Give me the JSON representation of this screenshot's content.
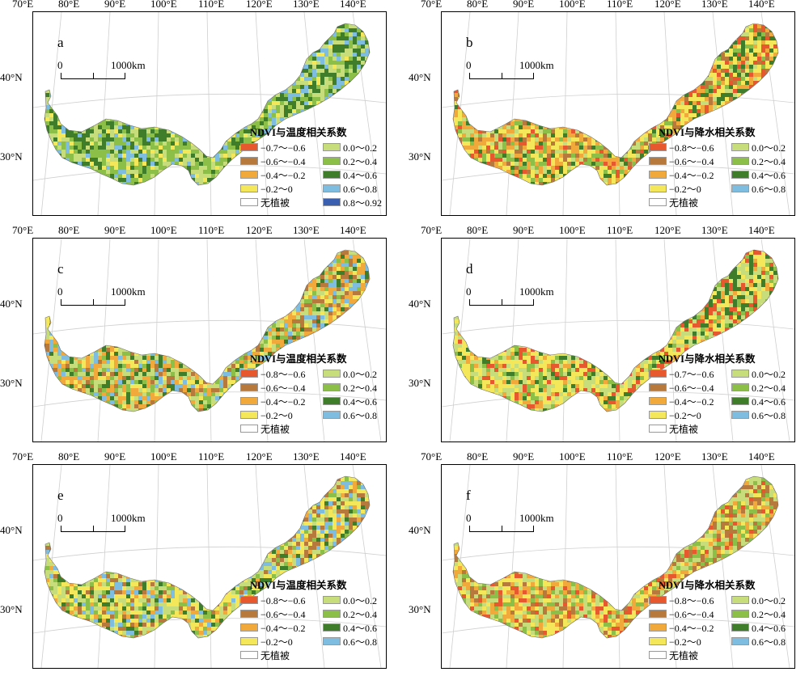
{
  "x_ticks": [
    "70°E",
    "80°E",
    "90°E",
    "100°E",
    "110°E",
    "120°E",
    "130°E",
    "140°E"
  ],
  "y_ticks": [
    "40°N",
    "30°N"
  ],
  "scale_bar": {
    "zero": "0",
    "label": "1000km"
  },
  "colors": {
    "neg08": "#e8582f",
    "neg06": "#b87a3c",
    "neg04": "#f2a93b",
    "neg02": "#f4e85a",
    "pos00": "#c7dc7a",
    "pos02": "#8cbf47",
    "pos04": "#3f7d2b",
    "pos06": "#7fbde0",
    "pos08": "#3b5fb0",
    "none": "#ffffff"
  },
  "panels": [
    {
      "letter": "a",
      "legend_title": "NDVI与温度相关系数",
      "legend_left": [
        {
          "label": "−0.7～−0.6",
          "color": "#e8582f"
        },
        {
          "label": "−0.6～−0.4",
          "color": "#b87a3c"
        },
        {
          "label": "−0.4～−0.2",
          "color": "#f2a93b"
        },
        {
          "label": "−0.2～0",
          "color": "#f4e85a"
        },
        {
          "label": "无植被",
          "color": "#ffffff"
        }
      ],
      "legend_right": [
        {
          "label": "0.0～0.2",
          "color": "#c7dc7a"
        },
        {
          "label": "0.2～0.4",
          "color": "#8cbf47"
        },
        {
          "label": "0.4～0.6",
          "color": "#3f7d2b"
        },
        {
          "label": "0.6～0.8",
          "color": "#7fbde0"
        },
        {
          "label": "0.8～0.92",
          "color": "#3b5fb0"
        }
      ],
      "palette": [
        "#8cbf47",
        "#8cbf47",
        "#c7dc7a",
        "#3f7d2b",
        "#f4e85a",
        "#8cbf47",
        "#c7dc7a",
        "#3f7d2b",
        "#7fbde0"
      ]
    },
    {
      "letter": "b",
      "legend_title": "NDVI与降水相关系数",
      "legend_left": [
        {
          "label": "−0.8～−0.6",
          "color": "#e8582f"
        },
        {
          "label": "−0.6～−0.4",
          "color": "#b87a3c"
        },
        {
          "label": "−0.4～−0.2",
          "color": "#f2a93b"
        },
        {
          "label": "−0.2～0",
          "color": "#f4e85a"
        },
        {
          "label": "无植被",
          "color": "#ffffff"
        }
      ],
      "legend_right": [
        {
          "label": "0.0～0.2",
          "color": "#c7dc7a"
        },
        {
          "label": "0.2～0.4",
          "color": "#8cbf47"
        },
        {
          "label": "0.4～0.6",
          "color": "#3f7d2b"
        },
        {
          "label": "0.6～0.8",
          "color": "#7fbde0"
        }
      ],
      "palette": [
        "#f2a93b",
        "#f4e85a",
        "#c7dc7a",
        "#f2a93b",
        "#b87a3c",
        "#8cbf47",
        "#f4e85a",
        "#e8582f",
        "#3f7d2b"
      ]
    },
    {
      "letter": "c",
      "legend_title": "NDVI与温度相关系数",
      "legend_left": [
        {
          "label": "−0.8～−0.6",
          "color": "#e8582f"
        },
        {
          "label": "−0.6～−0.4",
          "color": "#b87a3c"
        },
        {
          "label": "−0.4～−0.2",
          "color": "#f2a93b"
        },
        {
          "label": "−0.2～0",
          "color": "#f4e85a"
        },
        {
          "label": "无植被",
          "color": "#ffffff"
        }
      ],
      "legend_right": [
        {
          "label": "0.0～0.2",
          "color": "#c7dc7a"
        },
        {
          "label": "0.2～0.4",
          "color": "#8cbf47"
        },
        {
          "label": "0.4～0.6",
          "color": "#3f7d2b"
        },
        {
          "label": "0.6～0.8",
          "color": "#7fbde0"
        }
      ],
      "palette": [
        "#c7dc7a",
        "#f4e85a",
        "#8cbf47",
        "#f2a93b",
        "#c7dc7a",
        "#3f7d2b",
        "#f2a93b",
        "#b87a3c",
        "#7fbde0"
      ]
    },
    {
      "letter": "d",
      "legend_title": "NDVI与降水相关系数",
      "legend_left": [
        {
          "label": "−0.7～−0.6",
          "color": "#e8582f"
        },
        {
          "label": "−0.6～−0.4",
          "color": "#b87a3c"
        },
        {
          "label": "−0.4～−0.2",
          "color": "#f2a93b"
        },
        {
          "label": "−0.2～0",
          "color": "#f4e85a"
        },
        {
          "label": "无植被",
          "color": "#ffffff"
        }
      ],
      "legend_right": [
        {
          "label": "0.0～0.2",
          "color": "#c7dc7a"
        },
        {
          "label": "0.2～0.4",
          "color": "#8cbf47"
        },
        {
          "label": "0.4～0.6",
          "color": "#3f7d2b"
        },
        {
          "label": "0.6～0.8",
          "color": "#7fbde0"
        }
      ],
      "palette": [
        "#f4e85a",
        "#f4e85a",
        "#c7dc7a",
        "#f2a93b",
        "#f4e85a",
        "#8cbf47",
        "#c7dc7a",
        "#3f7d2b",
        "#e8582f"
      ]
    },
    {
      "letter": "e",
      "legend_title": "NDVI与温度相关系数",
      "legend_left": [
        {
          "label": "−0.8～−0.6",
          "color": "#e8582f"
        },
        {
          "label": "−0.6～−0.4",
          "color": "#b87a3c"
        },
        {
          "label": "−0.4～−0.2",
          "color": "#f2a93b"
        },
        {
          "label": "−0.2～0",
          "color": "#f4e85a"
        },
        {
          "label": "无植被",
          "color": "#ffffff"
        }
      ],
      "legend_right": [
        {
          "label": "0.0～0.2",
          "color": "#c7dc7a"
        },
        {
          "label": "0.2～0.4",
          "color": "#8cbf47"
        },
        {
          "label": "0.4～0.6",
          "color": "#3f7d2b"
        },
        {
          "label": "0.6～0.8",
          "color": "#7fbde0"
        }
      ],
      "palette": [
        "#c7dc7a",
        "#f4e85a",
        "#8cbf47",
        "#f2a93b",
        "#c7dc7a",
        "#3f7d2b",
        "#f4e85a",
        "#7fbde0",
        "#b87a3c"
      ]
    },
    {
      "letter": "f",
      "legend_title": "NDVI与降水相关系数",
      "legend_left": [
        {
          "label": "−0.8～−0.6",
          "color": "#e8582f"
        },
        {
          "label": "−0.6～−0.4",
          "color": "#b87a3c"
        },
        {
          "label": "−0.4～−0.2",
          "color": "#f2a93b"
        },
        {
          "label": "−0.2～0",
          "color": "#f4e85a"
        },
        {
          "label": "无植被",
          "color": "#ffffff"
        }
      ],
      "legend_right": [
        {
          "label": "0.0～0.2",
          "color": "#c7dc7a"
        },
        {
          "label": "0.2～0.4",
          "color": "#8cbf47"
        },
        {
          "label": "0.4～0.6",
          "color": "#3f7d2b"
        },
        {
          "label": "0.6～0.8",
          "color": "#7fbde0"
        }
      ],
      "palette": [
        "#f2a93b",
        "#f4e85a",
        "#c7dc7a",
        "#f2a93b",
        "#e8582f",
        "#f4e85a",
        "#b87a3c",
        "#8cbf47",
        "#c7dc7a"
      ]
    }
  ]
}
